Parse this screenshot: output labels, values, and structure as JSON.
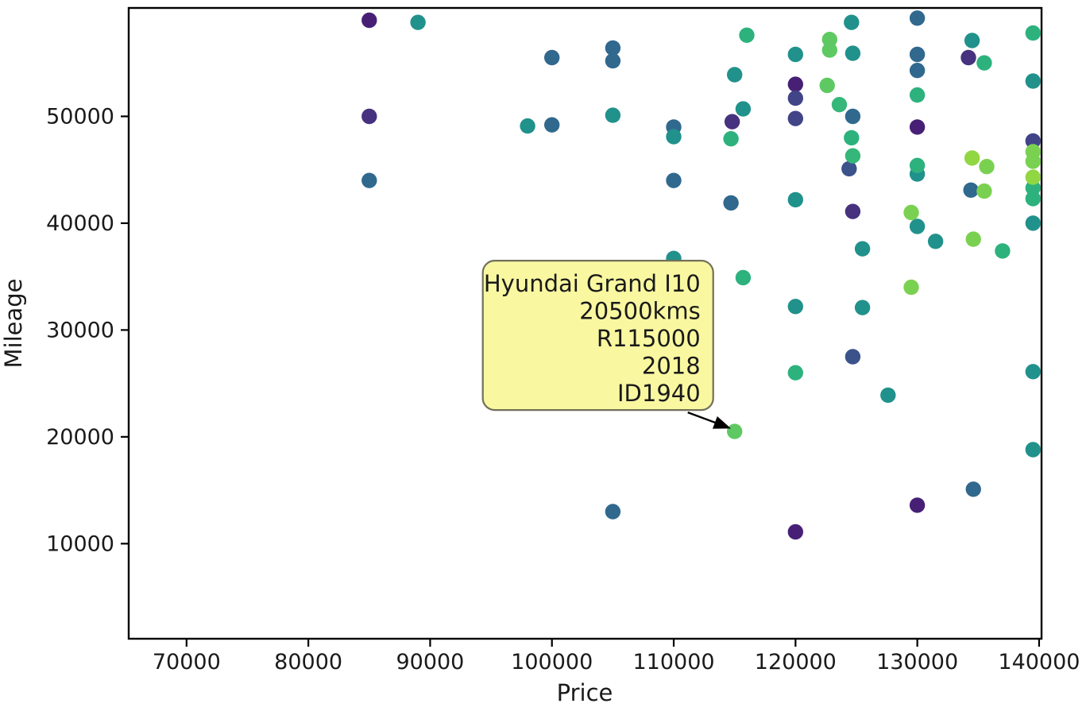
{
  "chart_data": {
    "type": "scatter",
    "title": "",
    "xlabel": "Price",
    "ylabel": "Mileage",
    "xlim": [
      65250,
      140200
    ],
    "ylim": [
      1100,
      60150
    ],
    "x_ticks": [
      70000,
      80000,
      90000,
      100000,
      110000,
      120000,
      130000,
      140000
    ],
    "y_ticks": [
      10000,
      20000,
      30000,
      40000,
      50000
    ],
    "grid": false,
    "legend": "none",
    "marker_radius": 9.7,
    "palette_note": "viridis",
    "points": [
      {
        "price": 85000,
        "mileage": 59000,
        "color": "#472076"
      },
      {
        "price": 120000,
        "mileage": 53000,
        "color": "#472076"
      },
      {
        "price": 130000,
        "mileage": 49000,
        "color": "#472076"
      },
      {
        "price": 130000,
        "mileage": 13600,
        "color": "#472076"
      },
      {
        "price": 120000,
        "mileage": 11100,
        "color": "#472076"
      },
      {
        "price": 85000,
        "mileage": 50000,
        "color": "#46327e"
      },
      {
        "price": 114800,
        "mileage": 49500,
        "color": "#46327e"
      },
      {
        "price": 124700,
        "mileage": 41100,
        "color": "#46327e"
      },
      {
        "price": 134200,
        "mileage": 55500,
        "color": "#46327e"
      },
      {
        "price": 120000,
        "mileage": 51700,
        "color": "#414487"
      },
      {
        "price": 120000,
        "mileage": 49800,
        "color": "#414487"
      },
      {
        "price": 139500,
        "mileage": 47700,
        "color": "#414487"
      },
      {
        "price": 124400,
        "mileage": 45100,
        "color": "#3b528b"
      },
      {
        "price": 124700,
        "mileage": 27500,
        "color": "#3b528b"
      },
      {
        "price": 100000,
        "mileage": 55500,
        "color": "#31688e"
      },
      {
        "price": 105000,
        "mileage": 56400,
        "color": "#31688e"
      },
      {
        "price": 105000,
        "mileage": 55200,
        "color": "#31688e"
      },
      {
        "price": 100000,
        "mileage": 49200,
        "color": "#31688e"
      },
      {
        "price": 110000,
        "mileage": 49000,
        "color": "#31688e"
      },
      {
        "price": 110000,
        "mileage": 44000,
        "color": "#31688e"
      },
      {
        "price": 85000,
        "mileage": 44000,
        "color": "#31688e"
      },
      {
        "price": 130000,
        "mileage": 59200,
        "color": "#31688e"
      },
      {
        "price": 130000,
        "mileage": 55800,
        "color": "#31688e"
      },
      {
        "price": 130000,
        "mileage": 54300,
        "color": "#31688e"
      },
      {
        "price": 124700,
        "mileage": 50000,
        "color": "#31688e"
      },
      {
        "price": 114700,
        "mileage": 41900,
        "color": "#31688e"
      },
      {
        "price": 134400,
        "mileage": 43100,
        "color": "#31688e"
      },
      {
        "price": 134600,
        "mileage": 15100,
        "color": "#31688e"
      },
      {
        "price": 105000,
        "mileage": 13000,
        "color": "#31688e"
      },
      {
        "price": 89000,
        "mileage": 58800,
        "color": "#21918c"
      },
      {
        "price": 98000,
        "mileage": 49100,
        "color": "#21918c"
      },
      {
        "price": 105000,
        "mileage": 50100,
        "color": "#21918c"
      },
      {
        "price": 110000,
        "mileage": 48100,
        "color": "#21918c"
      },
      {
        "price": 120000,
        "mileage": 55800,
        "color": "#21918c"
      },
      {
        "price": 124600,
        "mileage": 58800,
        "color": "#21918c"
      },
      {
        "price": 124700,
        "mileage": 55900,
        "color": "#21918c"
      },
      {
        "price": 115000,
        "mileage": 53900,
        "color": "#21918c"
      },
      {
        "price": 115700,
        "mileage": 50700,
        "color": "#21918c"
      },
      {
        "price": 130000,
        "mileage": 44600,
        "color": "#21918c"
      },
      {
        "price": 134500,
        "mileage": 57100,
        "color": "#21918c"
      },
      {
        "price": 139500,
        "mileage": 53300,
        "color": "#21918c"
      },
      {
        "price": 139500,
        "mileage": 40000,
        "color": "#21918c"
      },
      {
        "price": 120000,
        "mileage": 42200,
        "color": "#21918c"
      },
      {
        "price": 130000,
        "mileage": 39700,
        "color": "#21918c"
      },
      {
        "price": 131500,
        "mileage": 38300,
        "color": "#21918c"
      },
      {
        "price": 110000,
        "mileage": 36700,
        "color": "#21918c"
      },
      {
        "price": 120000,
        "mileage": 32200,
        "color": "#21918c"
      },
      {
        "price": 125500,
        "mileage": 37600,
        "color": "#21918c"
      },
      {
        "price": 125500,
        "mileage": 32100,
        "color": "#21918c"
      },
      {
        "price": 127600,
        "mileage": 23900,
        "color": "#21918c"
      },
      {
        "price": 139500,
        "mileage": 26100,
        "color": "#21918c"
      },
      {
        "price": 139500,
        "mileage": 18800,
        "color": "#21918c"
      },
      {
        "price": 116000,
        "mileage": 57600,
        "color": "#2db27d"
      },
      {
        "price": 123600,
        "mileage": 51100,
        "color": "#35b779"
      },
      {
        "price": 130000,
        "mileage": 52000,
        "color": "#2db27d"
      },
      {
        "price": 114700,
        "mileage": 47900,
        "color": "#2db27d"
      },
      {
        "price": 124600,
        "mileage": 48000,
        "color": "#2db27d"
      },
      {
        "price": 124700,
        "mileage": 46300,
        "color": "#35b779"
      },
      {
        "price": 130000,
        "mileage": 45400,
        "color": "#2db27d"
      },
      {
        "price": 139500,
        "mileage": 57800,
        "color": "#2db27d"
      },
      {
        "price": 139500,
        "mileage": 43300,
        "color": "#2db27d"
      },
      {
        "price": 139500,
        "mileage": 42300,
        "color": "#2db27d"
      },
      {
        "price": 137000,
        "mileage": 37400,
        "color": "#2db27d"
      },
      {
        "price": 115700,
        "mileage": 34900,
        "color": "#2db27d"
      },
      {
        "price": 120000,
        "mileage": 26000,
        "color": "#2db27d"
      },
      {
        "price": 135500,
        "mileage": 55000,
        "color": "#2db27d"
      },
      {
        "price": 122800,
        "mileage": 57200,
        "color": "#5ec962"
      },
      {
        "price": 122800,
        "mileage": 56200,
        "color": "#5ec962"
      },
      {
        "price": 122600,
        "mileage": 52900,
        "color": "#5ec962"
      },
      {
        "price": 115000,
        "mileage": 20500,
        "color": "#5ec962"
      },
      {
        "price": 135700,
        "mileage": 45300,
        "color": "#7ad151"
      },
      {
        "price": 139500,
        "mileage": 46700,
        "color": "#7ad151"
      },
      {
        "price": 139500,
        "mileage": 45800,
        "color": "#7ad151"
      },
      {
        "price": 129500,
        "mileage": 41000,
        "color": "#7ad151"
      },
      {
        "price": 135500,
        "mileage": 43000,
        "color": "#7ad151"
      },
      {
        "price": 134600,
        "mileage": 38500,
        "color": "#7ad151"
      },
      {
        "price": 129500,
        "mileage": 34000,
        "color": "#7ad151"
      },
      {
        "price": 134500,
        "mileage": 46100,
        "color": "#90d743"
      },
      {
        "price": 139500,
        "mileage": 44300,
        "color": "#90d743"
      }
    ],
    "annotation": {
      "lines": [
        "Hyundai Grand I10",
        "20500kms",
        "R115000",
        "2018",
        "ID1940"
      ],
      "target": {
        "price": 115000,
        "mileage": 20500
      },
      "box_fill": "#f9f8a1",
      "box_edge": "#70705a",
      "text_color": "#1a1a1a",
      "arrow_color": "#000000"
    }
  }
}
